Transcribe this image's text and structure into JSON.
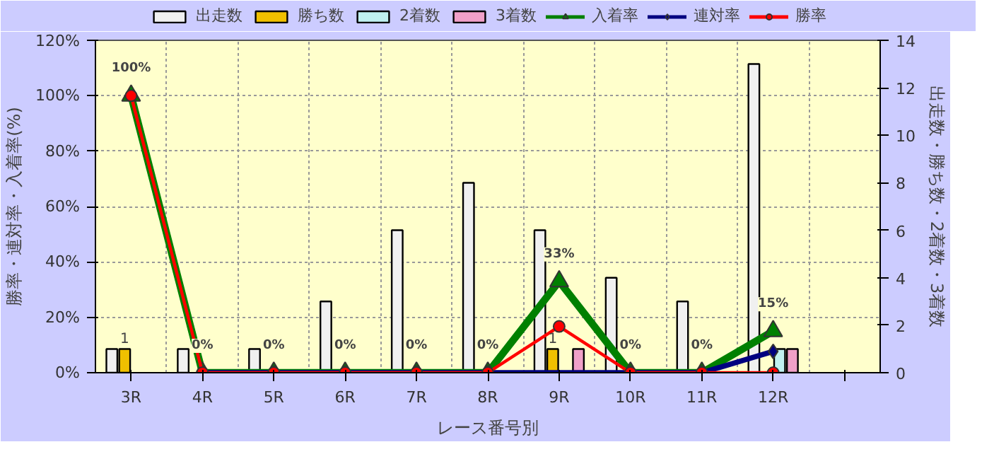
{
  "chart_data": {
    "type": "bar",
    "xlabel": "レース番号別",
    "ylabel": "勝率・連対率・入着率(%)",
    "y2label": "出走数・勝ち数・2着数・3着数",
    "categories": [
      "3R",
      "4R",
      "5R",
      "6R",
      "7R",
      "8R",
      "9R",
      "10R",
      "11R",
      "12R",
      null
    ],
    "series": [
      {
        "name": "出走数",
        "axis": "y2",
        "color": "#f0f0f0",
        "values": [
          1,
          1,
          1,
          3,
          6,
          8,
          6,
          4,
          3,
          13,
          null
        ]
      },
      {
        "name": "勝ち数",
        "axis": "y2",
        "color": "#f0c000",
        "values": [
          1,
          0,
          0,
          0,
          0,
          0,
          1,
          0,
          0,
          0,
          null
        ],
        "value_labels": [
          "1",
          null,
          null,
          null,
          null,
          null,
          "1",
          null,
          null,
          null,
          null
        ]
      },
      {
        "name": "2着数",
        "axis": "y2",
        "color": "#c0f0f0",
        "values": [
          0,
          0,
          0,
          0,
          0,
          0,
          0,
          0,
          0,
          1,
          null
        ]
      },
      {
        "name": "3着数",
        "axis": "y2",
        "color": "#f0a0c8",
        "values": [
          0,
          0,
          0,
          0,
          0,
          0,
          1,
          0,
          0,
          1,
          null
        ]
      },
      {
        "name": "入着率",
        "type": "line",
        "color": "#008000",
        "marker": "triangle",
        "values": [
          100,
          0,
          0,
          0,
          0,
          0,
          33,
          0,
          0,
          15,
          null
        ],
        "value_labels": [
          "100%",
          "0%",
          "0%",
          "0%",
          "0%",
          "0%",
          "33%",
          "0%",
          "0%",
          "15%",
          null
        ]
      },
      {
        "name": "連対率",
        "type": "line",
        "color": "#000080",
        "marker": "diamond",
        "values": [
          null,
          0,
          0,
          0,
          0,
          0,
          null,
          0,
          0,
          7.7,
          null
        ]
      },
      {
        "name": "勝率",
        "type": "line",
        "color": "#ff0000",
        "marker": "circle",
        "values": [
          100,
          0,
          0,
          0,
          0,
          0,
          16.7,
          0,
          0,
          0,
          null
        ]
      }
    ],
    "ylim": [
      0,
      120
    ],
    "yticks": [
      {
        "value": 0,
        "label": "0%"
      },
      {
        "value": 20,
        "label": "20%"
      },
      {
        "value": 40,
        "label": "40%"
      },
      {
        "value": 60,
        "label": "60%"
      },
      {
        "value": 80,
        "label": "80%"
      },
      {
        "value": 100,
        "label": "100%"
      },
      {
        "value": 120,
        "label": "120%"
      }
    ],
    "y2lim": [
      0,
      14
    ],
    "y2ticks": [
      0,
      2,
      4,
      6,
      8,
      10,
      12,
      14
    ],
    "grid": true,
    "legend": "top"
  }
}
